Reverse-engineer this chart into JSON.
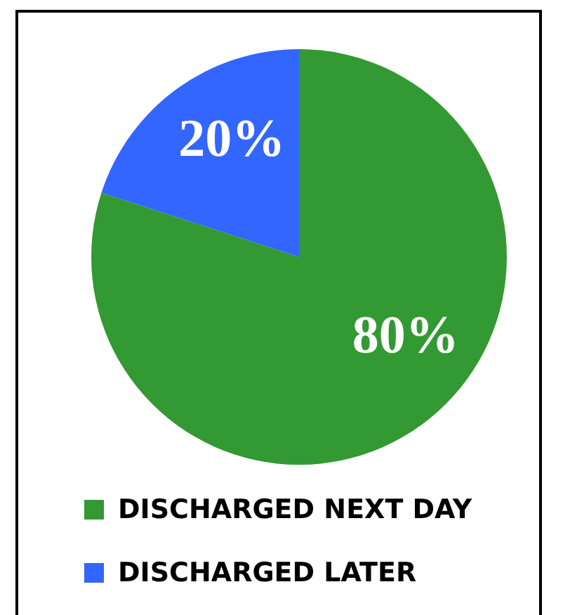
{
  "chart_data": {
    "type": "pie",
    "categories": [
      "DISCHARGED NEXT DAY",
      "DISCHARGED LATER"
    ],
    "values": [
      80,
      20
    ],
    "colors": [
      "#339933",
      "#3366ff"
    ],
    "value_labels": [
      "80%",
      "20%"
    ],
    "legend": "bottom"
  }
}
